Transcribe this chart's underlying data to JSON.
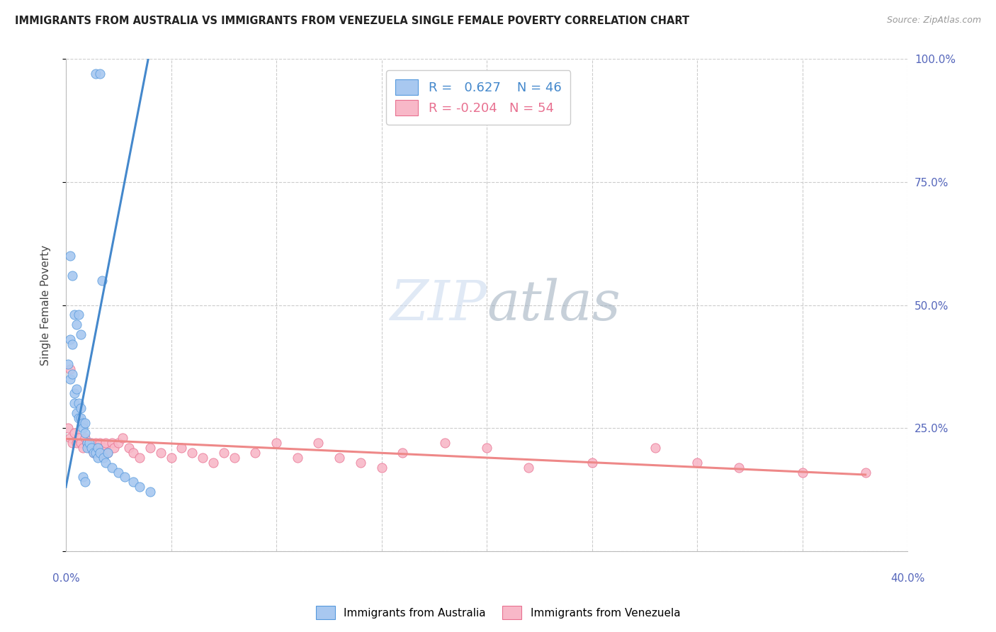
{
  "title": "IMMIGRANTS FROM AUSTRALIA VS IMMIGRANTS FROM VENEZUELA SINGLE FEMALE POVERTY CORRELATION CHART",
  "source": "Source: ZipAtlas.com",
  "ylabel": "Single Female Poverty",
  "r_australia": 0.627,
  "n_australia": 46,
  "r_venezuela": -0.204,
  "n_venezuela": 54,
  "color_australia_fill": "#A8C8F0",
  "color_australia_edge": "#5599DD",
  "color_venezuela_fill": "#F8B8C8",
  "color_venezuela_edge": "#E87090",
  "color_australia_line": "#4488CC",
  "color_venezuela_line": "#EE8888",
  "watermark_color": "#D0DFF0",
  "aus_x": [
    0.001,
    0.002,
    0.002,
    0.003,
    0.003,
    0.004,
    0.004,
    0.005,
    0.005,
    0.006,
    0.006,
    0.007,
    0.007,
    0.008,
    0.008,
    0.009,
    0.009,
    0.01,
    0.01,
    0.011,
    0.012,
    0.013,
    0.014,
    0.015,
    0.015,
    0.016,
    0.017,
    0.018,
    0.019,
    0.02,
    0.022,
    0.025,
    0.028,
    0.032,
    0.035,
    0.04,
    0.002,
    0.003,
    0.004,
    0.005,
    0.006,
    0.007,
    0.008,
    0.009,
    0.014,
    0.016
  ],
  "aus_y": [
    0.38,
    0.43,
    0.35,
    0.42,
    0.36,
    0.32,
    0.3,
    0.28,
    0.33,
    0.3,
    0.27,
    0.29,
    0.27,
    0.26,
    0.25,
    0.24,
    0.26,
    0.22,
    0.21,
    0.22,
    0.21,
    0.2,
    0.2,
    0.21,
    0.19,
    0.2,
    0.55,
    0.19,
    0.18,
    0.2,
    0.17,
    0.16,
    0.15,
    0.14,
    0.13,
    0.12,
    0.6,
    0.56,
    0.48,
    0.46,
    0.48,
    0.44,
    0.15,
    0.14,
    0.97,
    0.97
  ],
  "ven_x": [
    0.001,
    0.002,
    0.003,
    0.004,
    0.005,
    0.006,
    0.007,
    0.008,
    0.009,
    0.01,
    0.011,
    0.012,
    0.013,
    0.014,
    0.015,
    0.016,
    0.017,
    0.018,
    0.019,
    0.02,
    0.022,
    0.023,
    0.025,
    0.027,
    0.03,
    0.032,
    0.035,
    0.04,
    0.045,
    0.05,
    0.055,
    0.06,
    0.065,
    0.07,
    0.075,
    0.08,
    0.09,
    0.1,
    0.11,
    0.12,
    0.13,
    0.14,
    0.15,
    0.16,
    0.18,
    0.2,
    0.22,
    0.25,
    0.28,
    0.3,
    0.32,
    0.35,
    0.38,
    0.002
  ],
  "ven_y": [
    0.25,
    0.23,
    0.22,
    0.24,
    0.22,
    0.23,
    0.22,
    0.21,
    0.23,
    0.22,
    0.21,
    0.22,
    0.2,
    0.22,
    0.21,
    0.22,
    0.2,
    0.21,
    0.22,
    0.2,
    0.22,
    0.21,
    0.22,
    0.23,
    0.21,
    0.2,
    0.19,
    0.21,
    0.2,
    0.19,
    0.21,
    0.2,
    0.19,
    0.18,
    0.2,
    0.19,
    0.2,
    0.22,
    0.19,
    0.22,
    0.19,
    0.18,
    0.17,
    0.2,
    0.22,
    0.21,
    0.17,
    0.18,
    0.21,
    0.18,
    0.17,
    0.16,
    0.16,
    0.37
  ],
  "aus_line_x": [
    0.0,
    0.04
  ],
  "aus_line_y": [
    0.13,
    1.02
  ],
  "ven_line_x": [
    0.0,
    0.38
  ],
  "ven_line_y": [
    0.228,
    0.155
  ],
  "xlim": [
    0.0,
    0.4
  ],
  "ylim": [
    0.0,
    1.0
  ],
  "xticks": [
    0.0,
    0.05,
    0.1,
    0.15,
    0.2,
    0.25,
    0.3,
    0.35,
    0.4
  ],
  "yticks": [
    0.0,
    0.25,
    0.5,
    0.75,
    1.0
  ],
  "right_ytick_labels": [
    "25.0%",
    "50.0%",
    "75.0%",
    "100.0%"
  ],
  "right_ytick_vals": [
    0.25,
    0.5,
    0.75,
    1.0
  ]
}
